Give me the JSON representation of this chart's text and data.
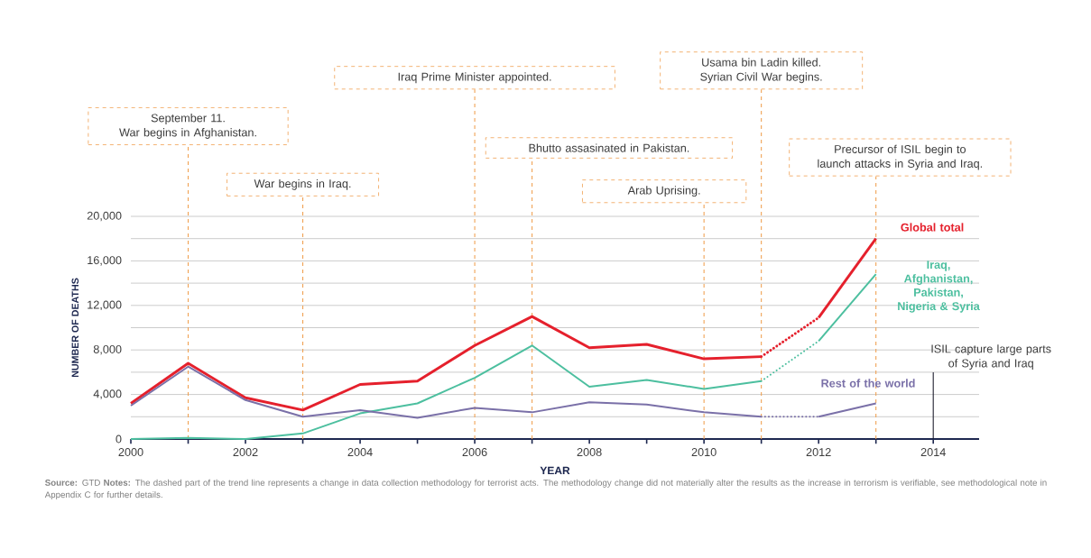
{
  "chart_data": {
    "type": "line",
    "xlabel": "YEAR",
    "ylabel": "NUMBER OF DEATHS",
    "xlim": [
      2000,
      2014.8
    ],
    "ylim": [
      0,
      20000
    ],
    "xticks": [
      2000,
      {
        "value": 2001,
        "label": null
      },
      2002,
      {
        "value": 2003,
        "label": null
      },
      2004,
      {
        "value": 2005,
        "label": null
      },
      2006,
      {
        "value": 2007,
        "label": null
      },
      2008,
      {
        "value": 2009,
        "label": null
      },
      2010,
      {
        "value": 2011,
        "label": null
      },
      2012,
      {
        "value": 2013,
        "label": null
      },
      2014
    ],
    "yticks": [
      0,
      {
        "value": 2000,
        "label": null
      },
      {
        "value": 4000,
        "label": "4,000"
      },
      {
        "value": 6000,
        "label": null
      },
      {
        "value": 8000,
        "label": "8,000"
      },
      {
        "value": 10000,
        "label": null
      },
      {
        "value": 12000,
        "label": "12,000"
      },
      {
        "value": 14000,
        "label": null
      },
      {
        "value": 16000,
        "label": "16,000"
      },
      {
        "value": 18000,
        "label": null
      },
      {
        "value": 20000,
        "label": "20,000"
      }
    ],
    "grid": "y",
    "series": [
      {
        "name": "Global total",
        "color": "#e5202c",
        "line_style": "solid",
        "x": [
          2000,
          2001,
          2002,
          2003,
          2004,
          2005,
          2006,
          2007,
          2008,
          2009,
          2010,
          2011
        ],
        "values": [
          3200,
          6800,
          3700,
          2600,
          4900,
          5200,
          8400,
          11000,
          8200,
          8500,
          7200,
          7400
        ]
      },
      {
        "color": "#e5202c",
        "line_style": "dotted",
        "x": [
          2011,
          2012
        ],
        "values": [
          7400,
          10900
        ]
      },
      {
        "color": "#e5202c",
        "line_style": "solid",
        "x": [
          2012,
          2013
        ],
        "values": [
          10900,
          18000
        ]
      },
      {
        "name": "Iraq, Afghanistan, Pakistan, Nigeria & Syria",
        "color": "#4cbf9f",
        "line_style": "solid",
        "x": [
          2000,
          2001,
          2002,
          2003,
          2004,
          2005,
          2006,
          2007,
          2008,
          2009,
          2010,
          2011
        ],
        "values": [
          0,
          100,
          0,
          500,
          2300,
          3200,
          5500,
          8400,
          4700,
          5300,
          4500,
          5200
        ]
      },
      {
        "color": "#4cbf9f",
        "line_style": "dotted",
        "x": [
          2011,
          2012
        ],
        "values": [
          5200,
          8800
        ]
      },
      {
        "color": "#4cbf9f",
        "line_style": "solid",
        "x": [
          2012,
          2013
        ],
        "values": [
          8800,
          14800
        ]
      },
      {
        "name": "Rest of the world",
        "color": "#7a70a8",
        "line_style": "solid",
        "x": [
          2000,
          2001,
          2002,
          2003,
          2004,
          2005,
          2006,
          2007,
          2008,
          2009,
          2010,
          2011
        ],
        "values": [
          3000,
          6500,
          3500,
          2000,
          2600,
          1900,
          2800,
          2400,
          3300,
          3100,
          2400,
          2000
        ]
      },
      {
        "color": "#7a70a8",
        "line_style": "dotted",
        "x": [
          2011,
          2012
        ],
        "values": [
          2000,
          2000
        ]
      },
      {
        "color": "#7a70a8",
        "line_style": "solid",
        "x": [
          2012,
          2013
        ],
        "values": [
          2000,
          3200
        ]
      }
    ],
    "ref_lines": [
      {
        "axis": "x",
        "value": 2001,
        "label": "September 11.\nWar begins in Afghanistan.",
        "color": "#f0a050",
        "line_style": "dashed"
      },
      {
        "axis": "x",
        "value": 2003,
        "label": "War begins in Iraq.",
        "color": "#f0a050",
        "line_style": "dashed"
      },
      {
        "axis": "x",
        "value": 2006,
        "label": "Iraq Prime Minister appointed.",
        "color": "#f0a050",
        "line_style": "dashed"
      },
      {
        "axis": "x",
        "value": 2007,
        "label": "Bhutto assasinated in Pakistan.",
        "color": "#f0a050",
        "line_style": "dashed"
      },
      {
        "axis": "x",
        "value": 2010,
        "label": "Arab Uprising.",
        "color": "#f0a050",
        "line_style": "dashed"
      },
      {
        "axis": "x",
        "value": 2011,
        "label": "Usama bin Ladin killed.\nSyrian Civil War begins.",
        "color": "#f0a050",
        "line_style": "dashed"
      },
      {
        "axis": "x",
        "value": 2013,
        "label": "Precursor of ISIL begin to\nlaunch attacks in Syria and Iraq.",
        "color": "#f0a050",
        "line_style": "dashed"
      },
      {
        "axis": "x",
        "value": 2014,
        "label": "ISIL capture large parts\nof Syria and Iraq",
        "color": "#1a1a2a",
        "line_style": "solid"
      }
    ],
    "annotations": [
      "**Source:** GTD  **Notes:** The dashed part of the trend line represents a change in data collection methodology for terrorist acts. The methodology change did not materially alter the results as the increase in terrorism is verifiable, see methodological note in Appendix C for further details."
    ]
  }
}
